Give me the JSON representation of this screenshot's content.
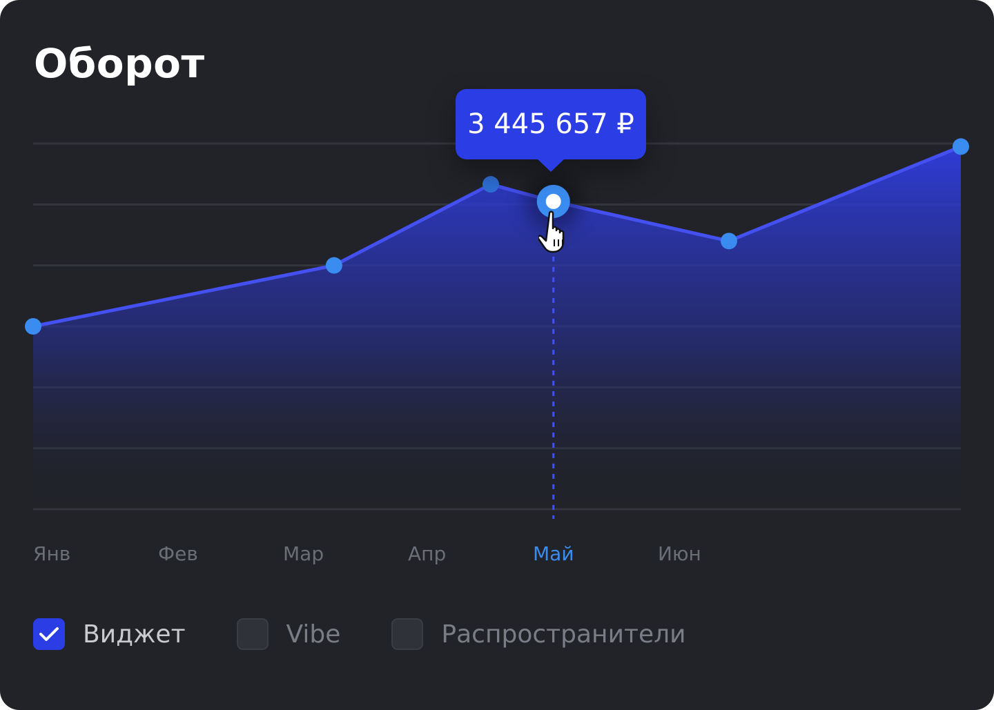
{
  "title": "Оборот",
  "tooltip": {
    "value": "3 445 657 ₽"
  },
  "legend": {
    "items": [
      {
        "label": "Виджет",
        "checked": true
      },
      {
        "label": "Vibe",
        "checked": false
      },
      {
        "label": "Распространители",
        "checked": false
      }
    ]
  },
  "colors": {
    "background": "#212329",
    "line": "#4450f0",
    "point": "#3b8cf0",
    "tooltip": "#2b3ee6",
    "active_label": "#3b8cf0",
    "inactive_label": "#6b6e76",
    "grid": "#33363c"
  },
  "cursor_icon": "hand-pointer-icon",
  "chart_data": {
    "type": "area",
    "categories": [
      "Янв",
      "Фев",
      "Мар",
      "Апр",
      "Май",
      "Июн"
    ],
    "active_category": "Май",
    "points": [
      {
        "x": 0.0,
        "y": 3.0
      },
      {
        "x": 2.4,
        "y": 4.0
      },
      {
        "x": 3.65,
        "y": 5.33
      },
      {
        "x": 4.15,
        "y": 5.05
      },
      {
        "x": 5.55,
        "y": 4.4
      },
      {
        "x": 7.4,
        "y": 5.95
      }
    ],
    "highlighted_index": 3,
    "ylim": [
      0,
      6
    ],
    "xlim": [
      0,
      7.4
    ],
    "grid": true,
    "grid_lines": 7
  }
}
